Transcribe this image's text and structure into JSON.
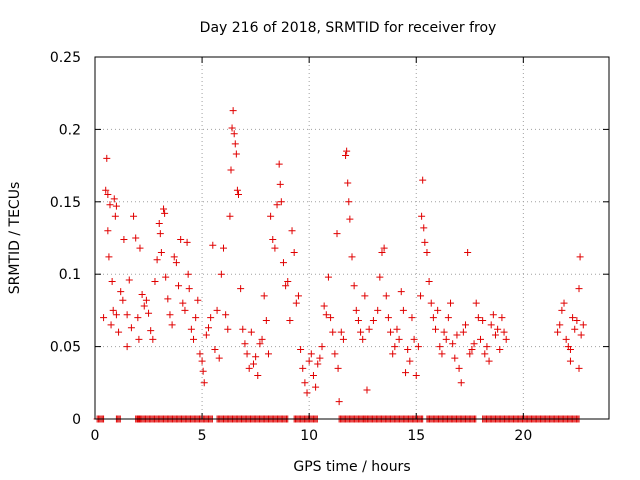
{
  "chart_data": {
    "type": "scatter",
    "title": "Day 216 of 2018, SRMTID for receiver froy",
    "xlabel": "GPS time / hours",
    "ylabel": "SRMTID / TECUs",
    "xlim": [
      0,
      24
    ],
    "ylim": [
      0,
      0.25
    ],
    "xticks": [
      0,
      5,
      10,
      15,
      20
    ],
    "yticks": [
      0,
      0.05,
      0.1,
      0.15,
      0.2,
      0.25
    ],
    "ytick_labels": [
      "0",
      "0.05",
      "0.1",
      "0.15",
      "0.2",
      "0.25"
    ],
    "grid": true,
    "marker": "+",
    "color": "#e00000",
    "zero_band": [
      [
        0.1,
        0.4
      ],
      [
        1.0,
        1.2
      ],
      [
        1.9,
        2.1
      ],
      [
        2.0,
        5.5
      ],
      [
        5.7,
        9.0
      ],
      [
        9.3,
        10.4
      ],
      [
        11.4,
        12.6
      ],
      [
        12.6,
        15.3
      ],
      [
        15.5,
        17.8
      ],
      [
        18.1,
        22.6
      ]
    ],
    "series": [
      {
        "name": "SRMTID",
        "points": [
          [
            0.4,
            0.07
          ],
          [
            0.5,
            0.158
          ],
          [
            0.55,
            0.18
          ],
          [
            0.6,
            0.155
          ],
          [
            0.6,
            0.13
          ],
          [
            0.65,
            0.112
          ],
          [
            0.7,
            0.148
          ],
          [
            0.75,
            0.065
          ],
          [
            0.8,
            0.095
          ],
          [
            0.85,
            0.075
          ],
          [
            0.9,
            0.152
          ],
          [
            0.95,
            0.14
          ],
          [
            1.0,
            0.147
          ],
          [
            1.0,
            0.072
          ],
          [
            1.1,
            0.06
          ],
          [
            1.2,
            0.088
          ],
          [
            1.3,
            0.082
          ],
          [
            1.35,
            0.124
          ],
          [
            1.5,
            0.05
          ],
          [
            1.5,
            0.072
          ],
          [
            1.6,
            0.096
          ],
          [
            1.7,
            0.063
          ],
          [
            1.8,
            0.14
          ],
          [
            1.9,
            0.125
          ],
          [
            2.0,
            0.07
          ],
          [
            2.05,
            0.055
          ],
          [
            2.1,
            0.118
          ],
          [
            2.2,
            0.086
          ],
          [
            2.3,
            0.078
          ],
          [
            2.4,
            0.082
          ],
          [
            2.5,
            0.073
          ],
          [
            2.6,
            0.061
          ],
          [
            2.7,
            0.055
          ],
          [
            2.8,
            0.095
          ],
          [
            2.9,
            0.11
          ],
          [
            3.0,
            0.135
          ],
          [
            3.05,
            0.128
          ],
          [
            3.1,
            0.115
          ],
          [
            3.2,
            0.145
          ],
          [
            3.25,
            0.142
          ],
          [
            3.3,
            0.098
          ],
          [
            3.4,
            0.083
          ],
          [
            3.5,
            0.072
          ],
          [
            3.6,
            0.065
          ],
          [
            3.7,
            0.112
          ],
          [
            3.8,
            0.108
          ],
          [
            3.9,
            0.092
          ],
          [
            4.0,
            0.124
          ],
          [
            4.1,
            0.08
          ],
          [
            4.2,
            0.075
          ],
          [
            4.3,
            0.122
          ],
          [
            4.35,
            0.1
          ],
          [
            4.4,
            0.09
          ],
          [
            4.5,
            0.062
          ],
          [
            4.6,
            0.055
          ],
          [
            4.7,
            0.07
          ],
          [
            4.8,
            0.082
          ],
          [
            4.9,
            0.045
          ],
          [
            5.0,
            0.04
          ],
          [
            5.05,
            0.033
          ],
          [
            5.1,
            0.025
          ],
          [
            5.2,
            0.058
          ],
          [
            5.3,
            0.063
          ],
          [
            5.4,
            0.07
          ],
          [
            5.5,
            0.12
          ],
          [
            5.6,
            0.048
          ],
          [
            5.7,
            0.075
          ],
          [
            5.8,
            0.042
          ],
          [
            5.9,
            0.1
          ],
          [
            6.0,
            0.118
          ],
          [
            6.1,
            0.072
          ],
          [
            6.2,
            0.062
          ],
          [
            6.3,
            0.14
          ],
          [
            6.35,
            0.172
          ],
          [
            6.4,
            0.201
          ],
          [
            6.45,
            0.213
          ],
          [
            6.5,
            0.197
          ],
          [
            6.55,
            0.19
          ],
          [
            6.6,
            0.183
          ],
          [
            6.65,
            0.158
          ],
          [
            6.7,
            0.155
          ],
          [
            6.8,
            0.09
          ],
          [
            6.9,
            0.062
          ],
          [
            7.0,
            0.052
          ],
          [
            7.1,
            0.045
          ],
          [
            7.2,
            0.035
          ],
          [
            7.3,
            0.06
          ],
          [
            7.4,
            0.038
          ],
          [
            7.5,
            0.043
          ],
          [
            7.6,
            0.03
          ],
          [
            7.7,
            0.052
          ],
          [
            7.8,
            0.055
          ],
          [
            7.9,
            0.085
          ],
          [
            8.0,
            0.068
          ],
          [
            8.1,
            0.045
          ],
          [
            8.2,
            0.14
          ],
          [
            8.3,
            0.124
          ],
          [
            8.4,
            0.118
          ],
          [
            8.5,
            0.148
          ],
          [
            8.6,
            0.176
          ],
          [
            8.65,
            0.162
          ],
          [
            8.7,
            0.15
          ],
          [
            8.8,
            0.108
          ],
          [
            8.9,
            0.092
          ],
          [
            9.0,
            0.095
          ],
          [
            9.1,
            0.068
          ],
          [
            9.2,
            0.13
          ],
          [
            9.3,
            0.115
          ],
          [
            9.4,
            0.08
          ],
          [
            9.5,
            0.085
          ],
          [
            9.6,
            0.048
          ],
          [
            9.7,
            0.035
          ],
          [
            9.8,
            0.025
          ],
          [
            9.9,
            0.018
          ],
          [
            10.0,
            0.04
          ],
          [
            10.1,
            0.045
          ],
          [
            10.2,
            0.03
          ],
          [
            10.3,
            0.022
          ],
          [
            10.4,
            0.038
          ],
          [
            10.5,
            0.042
          ],
          [
            10.6,
            0.05
          ],
          [
            10.7,
            0.078
          ],
          [
            10.8,
            0.072
          ],
          [
            10.9,
            0.098
          ],
          [
            11.0,
            0.07
          ],
          [
            11.1,
            0.06
          ],
          [
            11.2,
            0.045
          ],
          [
            11.3,
            0.128
          ],
          [
            11.35,
            0.035
          ],
          [
            11.4,
            0.012
          ],
          [
            11.5,
            0.06
          ],
          [
            11.6,
            0.055
          ],
          [
            11.7,
            0.182
          ],
          [
            11.75,
            0.185
          ],
          [
            11.8,
            0.163
          ],
          [
            11.85,
            0.15
          ],
          [
            11.9,
            0.138
          ],
          [
            12.0,
            0.112
          ],
          [
            12.1,
            0.092
          ],
          [
            12.2,
            0.075
          ],
          [
            12.3,
            0.068
          ],
          [
            12.4,
            0.06
          ],
          [
            12.5,
            0.055
          ],
          [
            12.6,
            0.085
          ],
          [
            12.7,
            0.02
          ],
          [
            12.8,
            0.062
          ],
          [
            13.0,
            0.068
          ],
          [
            13.2,
            0.075
          ],
          [
            13.3,
            0.098
          ],
          [
            13.4,
            0.115
          ],
          [
            13.5,
            0.118
          ],
          [
            13.6,
            0.085
          ],
          [
            13.7,
            0.07
          ],
          [
            13.8,
            0.06
          ],
          [
            13.9,
            0.045
          ],
          [
            14.0,
            0.05
          ],
          [
            14.1,
            0.062
          ],
          [
            14.2,
            0.055
          ],
          [
            14.3,
            0.088
          ],
          [
            14.4,
            0.075
          ],
          [
            14.5,
            0.032
          ],
          [
            14.6,
            0.048
          ],
          [
            14.7,
            0.04
          ],
          [
            14.8,
            0.07
          ],
          [
            14.9,
            0.055
          ],
          [
            15.0,
            0.03
          ],
          [
            15.1,
            0.05
          ],
          [
            15.2,
            0.085
          ],
          [
            15.25,
            0.14
          ],
          [
            15.3,
            0.165
          ],
          [
            15.35,
            0.132
          ],
          [
            15.4,
            0.122
          ],
          [
            15.5,
            0.115
          ],
          [
            15.6,
            0.095
          ],
          [
            15.7,
            0.08
          ],
          [
            15.8,
            0.07
          ],
          [
            15.9,
            0.062
          ],
          [
            16.0,
            0.075
          ],
          [
            16.1,
            0.05
          ],
          [
            16.2,
            0.045
          ],
          [
            16.3,
            0.06
          ],
          [
            16.4,
            0.055
          ],
          [
            16.5,
            0.07
          ],
          [
            16.6,
            0.08
          ],
          [
            16.7,
            0.052
          ],
          [
            16.8,
            0.042
          ],
          [
            16.9,
            0.058
          ],
          [
            17.0,
            0.035
          ],
          [
            17.1,
            0.025
          ],
          [
            17.2,
            0.06
          ],
          [
            17.3,
            0.065
          ],
          [
            17.4,
            0.115
          ],
          [
            17.5,
            0.045
          ],
          [
            17.6,
            0.048
          ],
          [
            17.7,
            0.052
          ],
          [
            17.8,
            0.08
          ],
          [
            17.9,
            0.07
          ],
          [
            18.0,
            0.055
          ],
          [
            18.1,
            0.068
          ],
          [
            18.2,
            0.045
          ],
          [
            18.3,
            0.05
          ],
          [
            18.4,
            0.04
          ],
          [
            18.5,
            0.065
          ],
          [
            18.6,
            0.072
          ],
          [
            18.7,
            0.058
          ],
          [
            18.8,
            0.062
          ],
          [
            18.9,
            0.048
          ],
          [
            19.0,
            0.07
          ],
          [
            19.1,
            0.06
          ],
          [
            19.2,
            0.055
          ],
          [
            21.6,
            0.06
          ],
          [
            21.7,
            0.065
          ],
          [
            21.8,
            0.075
          ],
          [
            21.9,
            0.08
          ],
          [
            22.0,
            0.055
          ],
          [
            22.1,
            0.05
          ],
          [
            22.2,
            0.048
          ],
          [
            22.3,
            0.07
          ],
          [
            22.4,
            0.062
          ],
          [
            22.5,
            0.068
          ],
          [
            22.6,
            0.09
          ],
          [
            22.65,
            0.112
          ],
          [
            22.7,
            0.058
          ],
          [
            22.8,
            0.065
          ],
          [
            22.6,
            0.035
          ],
          [
            22.2,
            0.04
          ]
        ]
      }
    ]
  }
}
